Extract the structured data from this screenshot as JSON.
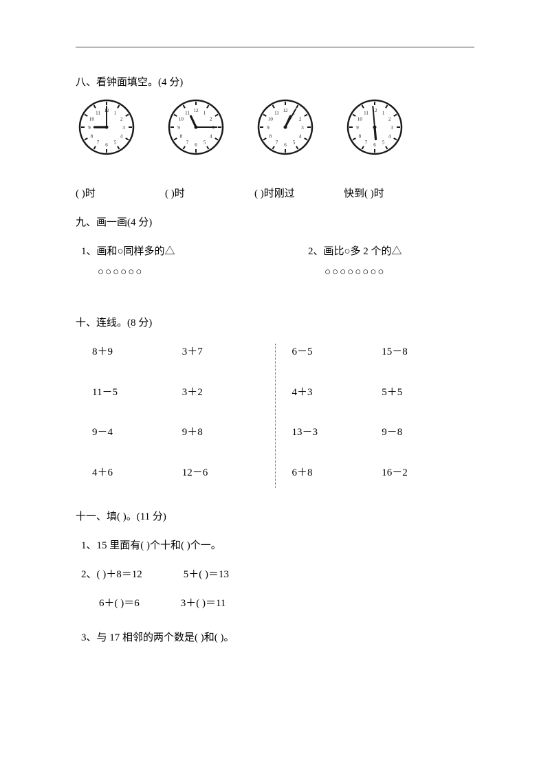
{
  "section8": {
    "title": "八、看钟面填空。(4 分)",
    "labels": [
      "(   )时",
      "(     )时",
      "(     )时刚过",
      "快到(   )时"
    ],
    "clocks": [
      {
        "hourAngle": -90,
        "minAngle": 0
      },
      {
        "hourAngle": -25,
        "minAngle": 90
      },
      {
        "hourAngle": 25,
        "minAngle": 30
      },
      {
        "hourAngle": 175,
        "minAngle": -5
      }
    ]
  },
  "section9": {
    "title": "九、画一画(4 分)",
    "q1": {
      "label": "1、画和○同样多的△",
      "circles": "○○○○○○"
    },
    "q2": {
      "label": "2、画比○多 2 个的△",
      "circles": "○○○○○○○○"
    }
  },
  "section10": {
    "title": "十、连线。(8 分)",
    "left": [
      [
        "8＋9",
        "3＋7"
      ],
      [
        "11－5",
        "3＋2"
      ],
      [
        "9－4",
        "9＋8"
      ],
      [
        "4＋6",
        "12－6"
      ]
    ],
    "right": [
      [
        "6－5",
        "15－8"
      ],
      [
        "4＋3",
        "5＋5"
      ],
      [
        "13－3",
        "9－8"
      ],
      [
        "6＋8",
        "16－2"
      ]
    ]
  },
  "section11": {
    "title": "十一、填(   )。(11 分)",
    "q1": "1、15 里面有(   )个十和(   )个一。",
    "q2a": "2、(   )＋8＝12",
    "q2b": "5＋(   )＝13",
    "q2c": "6＋(   )＝6",
    "q2d": "3＋(   )＝11",
    "q3": "3、与 17 相邻的两个数是(   )和(   )。"
  },
  "style": {
    "ink": "#000000",
    "clockStroke": "#1a1a1a",
    "clockSize": 86
  }
}
